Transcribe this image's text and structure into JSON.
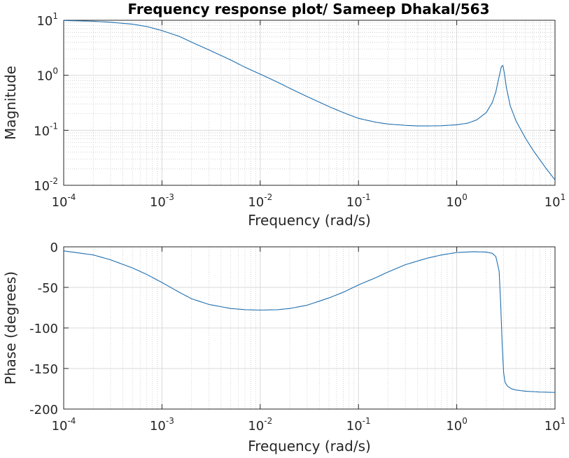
{
  "chart_data": [
    {
      "type": "line",
      "title": "Frequency response plot/ Sameep Dhakal/563",
      "xlabel": "Frequency (rad/s)",
      "ylabel": "Magnitude",
      "xscale": "log",
      "yscale": "log",
      "xlim": [
        0.0001,
        10
      ],
      "ylim": [
        0.01,
        10
      ],
      "grid": true,
      "color": "#1f6fb0",
      "xticks": [
        {
          "base": "10",
          "exp": "-4",
          "value": 0.0001
        },
        {
          "base": "10",
          "exp": "-3",
          "value": 0.001
        },
        {
          "base": "10",
          "exp": "-2",
          "value": 0.01
        },
        {
          "base": "10",
          "exp": "-1",
          "value": 0.1
        },
        {
          "base": "10",
          "exp": "0",
          "value": 1
        },
        {
          "base": "10",
          "exp": "1",
          "value": 10
        }
      ],
      "yticks": [
        {
          "base": "10",
          "exp": "-2",
          "value": 0.01
        },
        {
          "base": "10",
          "exp": "-1",
          "value": 0.1
        },
        {
          "base": "10",
          "exp": "0",
          "value": 1
        },
        {
          "base": "10",
          "exp": "1",
          "value": 10
        }
      ],
      "x": [
        0.0001,
        0.0002,
        0.0003,
        0.0005,
        0.0007,
        0.001,
        0.0015,
        0.002,
        0.003,
        0.005,
        0.007,
        0.01,
        0.015,
        0.02,
        0.03,
        0.05,
        0.07,
        0.1,
        0.15,
        0.2,
        0.3,
        0.4,
        0.5,
        0.7,
        1.0,
        1.3,
        1.6,
        2.0,
        2.3,
        2.5,
        2.7,
        2.85,
        2.95,
        3.05,
        3.2,
        3.5,
        4.0,
        5.0,
        6.0,
        8.0,
        10.0
      ],
      "y": [
        9.9,
        9.6,
        9.2,
        8.5,
        7.7,
        6.5,
        5.1,
        4.0,
        2.9,
        1.9,
        1.4,
        1.05,
        0.75,
        0.58,
        0.41,
        0.27,
        0.21,
        0.165,
        0.14,
        0.13,
        0.123,
        0.12,
        0.12,
        0.121,
        0.126,
        0.135,
        0.155,
        0.21,
        0.32,
        0.5,
        0.95,
        1.45,
        1.5,
        1.1,
        0.6,
        0.28,
        0.15,
        0.072,
        0.043,
        0.021,
        0.0125
      ]
    },
    {
      "type": "line",
      "xlabel": "Frequency (rad/s)",
      "ylabel": "Phase (degrees)",
      "xscale": "log",
      "xlim": [
        0.0001,
        10
      ],
      "ylim": [
        -200,
        0
      ],
      "grid": true,
      "color": "#1f6fb0",
      "xticks": [
        {
          "base": "10",
          "exp": "-4",
          "value": 0.0001
        },
        {
          "base": "10",
          "exp": "-3",
          "value": 0.001
        },
        {
          "base": "10",
          "exp": "-2",
          "value": 0.01
        },
        {
          "base": "10",
          "exp": "-1",
          "value": 0.1
        },
        {
          "base": "10",
          "exp": "0",
          "value": 1
        },
        {
          "base": "10",
          "exp": "1",
          "value": 10
        }
      ],
      "yticks": [
        {
          "label": "0",
          "value": 0
        },
        {
          "label": "-50",
          "value": -50
        },
        {
          "label": "-100",
          "value": -100
        },
        {
          "label": "-150",
          "value": -150
        },
        {
          "label": "-200",
          "value": -200
        }
      ],
      "x": [
        0.0001,
        0.0002,
        0.0003,
        0.0005,
        0.0007,
        0.001,
        0.0015,
        0.002,
        0.003,
        0.005,
        0.007,
        0.01,
        0.015,
        0.02,
        0.03,
        0.05,
        0.07,
        0.1,
        0.15,
        0.2,
        0.3,
        0.5,
        0.7,
        1.0,
        1.5,
        2.0,
        2.3,
        2.5,
        2.7,
        2.8,
        2.9,
        3.0,
        3.1,
        3.3,
        3.6,
        4.0,
        5.0,
        7.0,
        10.0
      ],
      "y": [
        -5,
        -10,
        -16,
        -26,
        -34,
        -44,
        -56,
        -64,
        -71,
        -76,
        -77.5,
        -78,
        -77.5,
        -76,
        -72,
        -63,
        -56,
        -47,
        -38,
        -31,
        -22,
        -14,
        -10,
        -7,
        -6,
        -6.5,
        -8,
        -12,
        -30,
        -70,
        -120,
        -155,
        -167,
        -172,
        -175,
        -176.5,
        -178,
        -179,
        -179.5
      ]
    }
  ]
}
